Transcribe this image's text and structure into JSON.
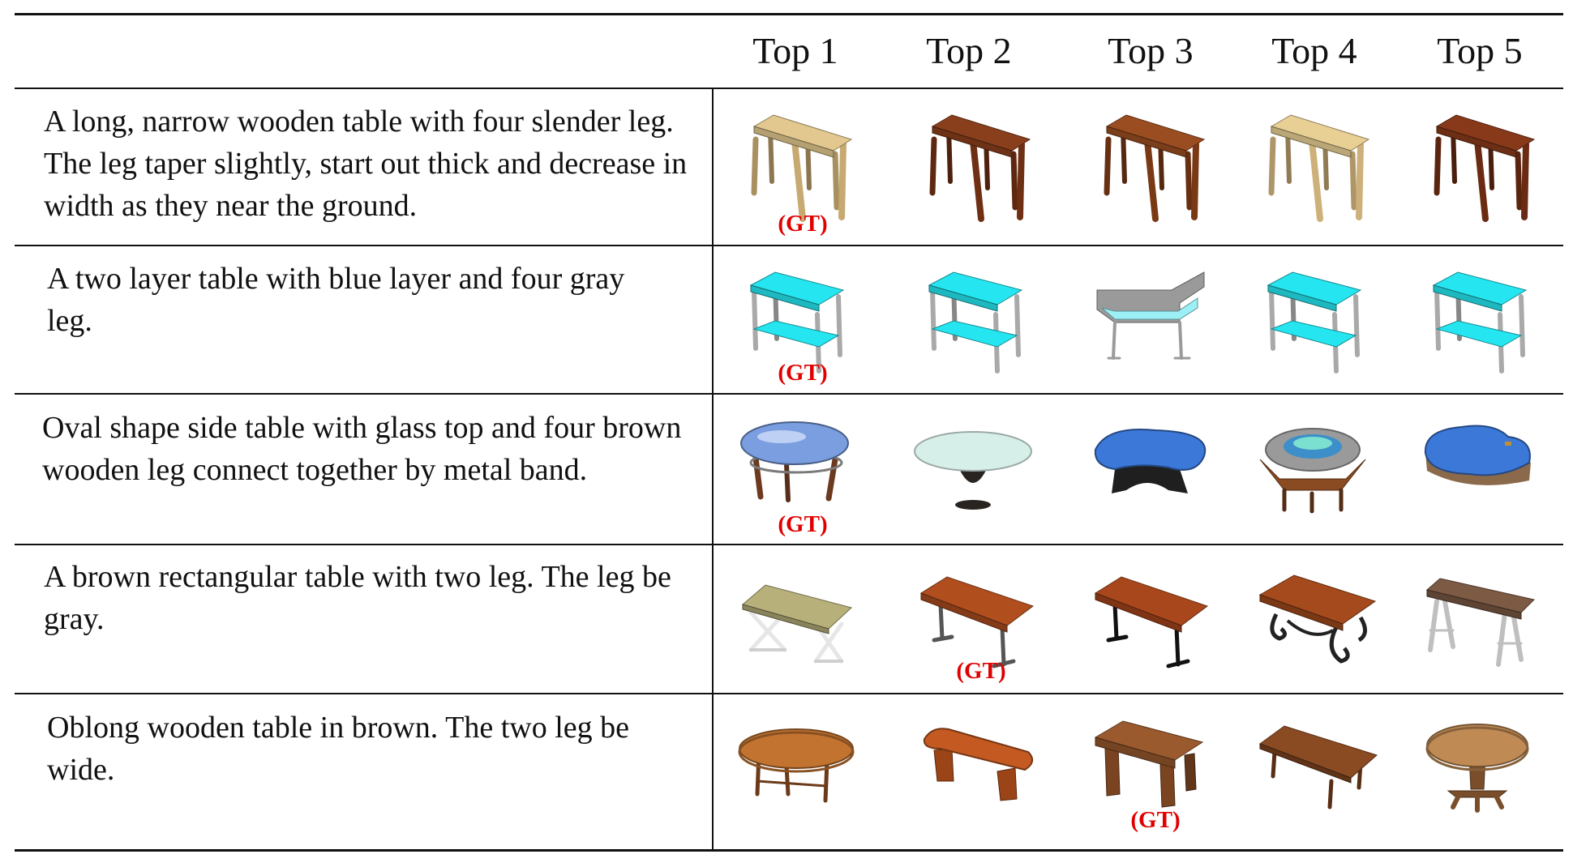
{
  "headers": [
    "Top 1",
    "Top 2",
    "Top 3",
    "Top 4",
    "Top 5"
  ],
  "gt_label": "(GT)",
  "rows": [
    {
      "caption": "A long, narrow wooden table with four slender leg. The leg taper slightly, start out thick and decrease in width as they near the ground.",
      "gt_rank": 1,
      "results": [
        {
          "shape": "console-table",
          "top": "#e2c88f",
          "legs": "#c7a971"
        },
        {
          "shape": "console-table",
          "top": "#8a3f1c",
          "legs": "#6e2f13"
        },
        {
          "shape": "console-table",
          "top": "#9a4d20",
          "legs": "#7a3915"
        },
        {
          "shape": "console-table",
          "top": "#e8cf93",
          "legs": "#cdb07a"
        },
        {
          "shape": "console-table",
          "top": "#87391a",
          "legs": "#6a2b12"
        }
      ]
    },
    {
      "caption": "A two layer table with blue layer and four gray leg.",
      "gt_rank": 1,
      "results": [
        {
          "shape": "two-layer-table",
          "top": "#25e6f0",
          "legs": "#a9a9a9"
        },
        {
          "shape": "two-layer-table",
          "top": "#25e6f0",
          "legs": "#a9a9a9"
        },
        {
          "shape": "corner-desk",
          "top": "#9cf0f5",
          "legs": "#9a9a9a"
        },
        {
          "shape": "two-layer-table",
          "top": "#25e6f0",
          "legs": "#a9a9a9"
        },
        {
          "shape": "two-layer-table",
          "top": "#25e6f0",
          "legs": "#a9a9a9"
        }
      ]
    },
    {
      "caption": "Oval shape side table with glass top and four brown wooden leg connect together by metal band.",
      "gt_rank": 1,
      "results": [
        {
          "shape": "oval-glass-table",
          "top": "#7a9ee0",
          "legs": "#6b3a1f"
        },
        {
          "shape": "round-glass-pedestal",
          "top": "#d7efe9",
          "legs": "#2a2420"
        },
        {
          "shape": "kidney-table",
          "top": "#3c78d8",
          "legs": "#1f1f1f"
        },
        {
          "shape": "hex-bench-table",
          "top": "#9a9a9a",
          "legs": "#8a4a22"
        },
        {
          "shape": "blob-table",
          "top": "#3c78d8",
          "legs": "#8a6a4a"
        }
      ]
    },
    {
      "caption": "A brown rectangular table with two leg. The leg be gray.",
      "gt_rank": 2,
      "results": [
        {
          "shape": "x-leg-table",
          "top": "#b8b07a",
          "legs": "#e6e6e6"
        },
        {
          "shape": "t-leg-table",
          "top": "#b04e1e",
          "legs": "#555555"
        },
        {
          "shape": "t-leg-table",
          "top": "#a9471c",
          "legs": "#111111"
        },
        {
          "shape": "scroll-leg-table",
          "top": "#a44a1c",
          "legs": "#222222"
        },
        {
          "shape": "sawhorse-table",
          "top": "#7d5a44",
          "legs": "#bfbfbf"
        }
      ]
    },
    {
      "caption": "Oblong wooden table in brown. The two leg be wide.",
      "gt_rank": 3,
      "results": [
        {
          "shape": "oval-wood-table",
          "top": "#c27330",
          "legs": "#6b3a1a"
        },
        {
          "shape": "bench-table",
          "top": "#c45a22",
          "legs": "#9a4418"
        },
        {
          "shape": "panel-leg-table",
          "top": "#9a5a2e",
          "legs": "#7a4420"
        },
        {
          "shape": "long-low-table",
          "top": "#8a4a22",
          "legs": "#5a2e14"
        },
        {
          "shape": "pedestal-oval-table",
          "top": "#c08a55",
          "legs": "#7a4e2a"
        }
      ]
    }
  ]
}
